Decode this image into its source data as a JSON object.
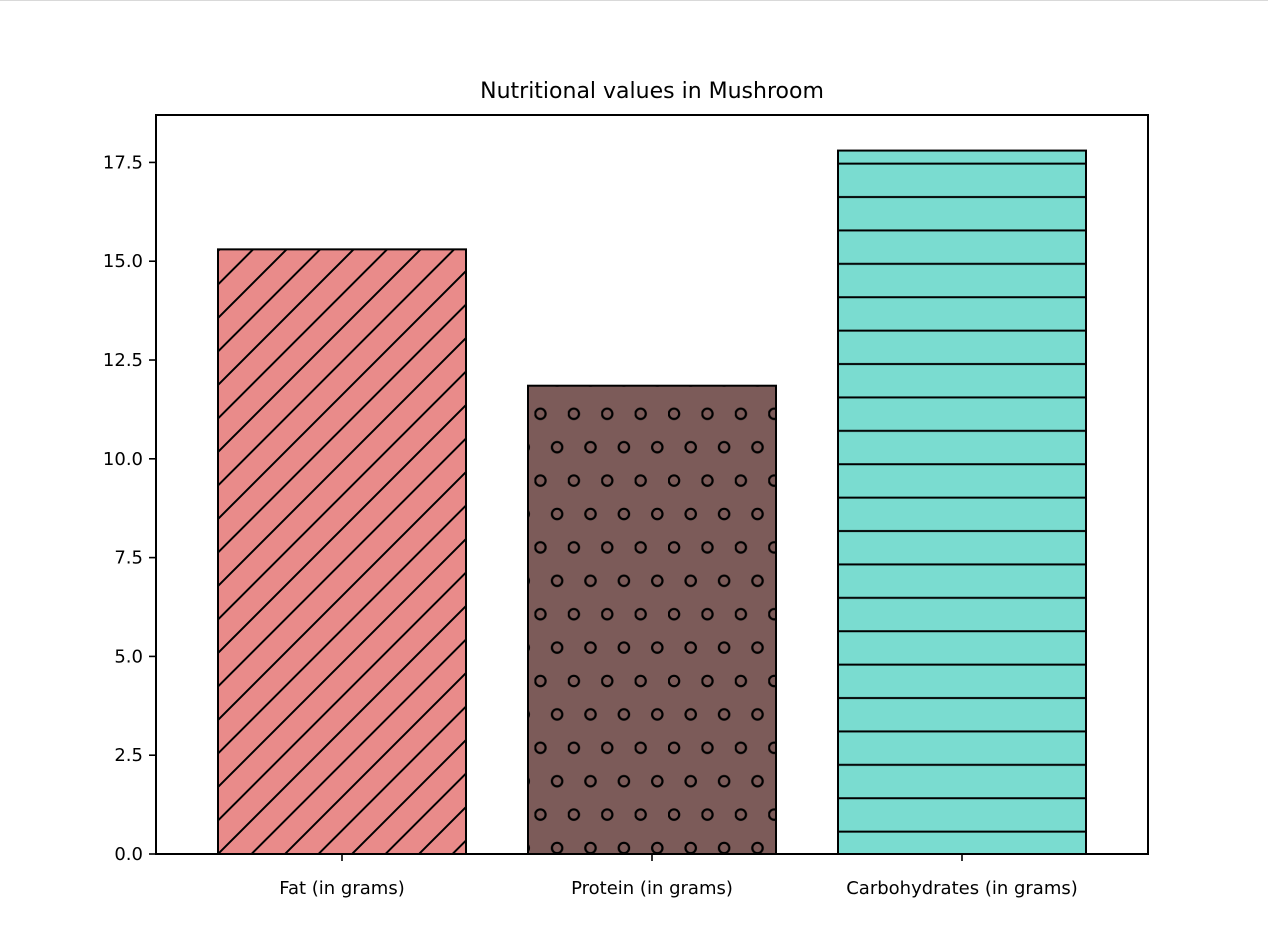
{
  "chart_data": {
    "type": "bar",
    "title": "Nutritional values in Mushroom",
    "xlabel": "",
    "ylabel": "",
    "categories": [
      "Fat (in grams)",
      "Protein (in grams)",
      "Carbohydrates (in grams)"
    ],
    "values": [
      15.3,
      11.85,
      17.8
    ],
    "colors": [
      "#e98b8a",
      "#7c5b59",
      "#7adcd0"
    ],
    "hatches": [
      "diagonal",
      "circles",
      "horizontal"
    ],
    "ylim": [
      0,
      18.7
    ],
    "yticks": [
      "0.0",
      "2.5",
      "5.0",
      "7.5",
      "10.0",
      "12.5",
      "15.0",
      "17.5"
    ],
    "grid": false,
    "legend": "none"
  }
}
